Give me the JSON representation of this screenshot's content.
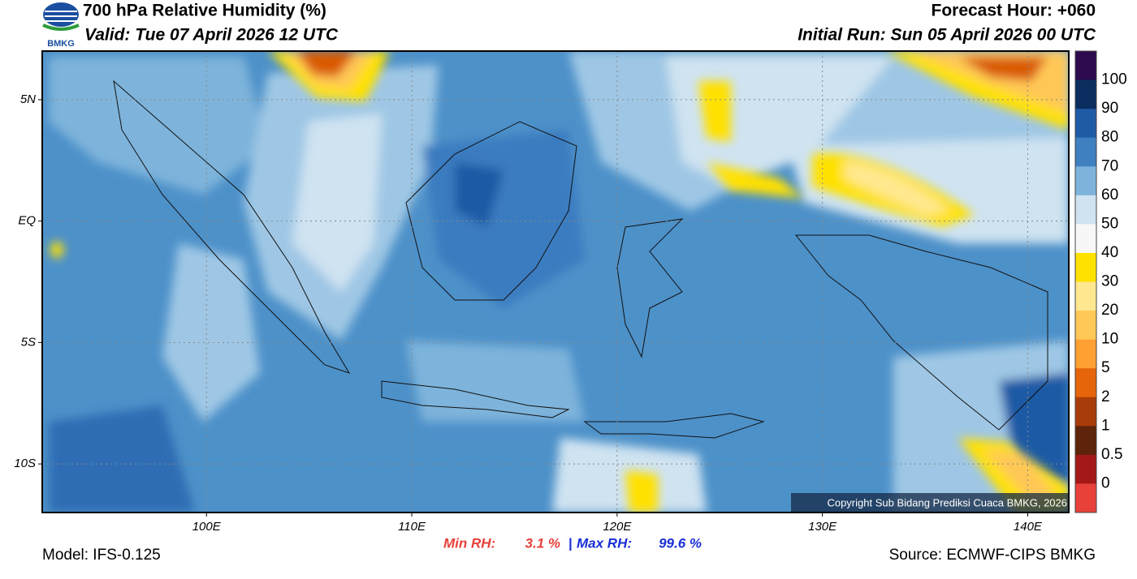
{
  "header": {
    "logo": "BMKG",
    "title": "700 hPa Relative Humidity (%)",
    "valid": "Valid: Tue 07 April 2026 12 UTC",
    "forecast_hour": "Forecast Hour: +060",
    "initial_run": "Initial Run: Sun 05 April 2026 00 UTC"
  },
  "map": {
    "lonlim": [
      92,
      142
    ],
    "latlim": [
      -12,
      7
    ],
    "lonticks": [
      {
        "value": 100,
        "label": "100E"
      },
      {
        "value": 110,
        "label": "110E"
      },
      {
        "value": 120,
        "label": "120E"
      },
      {
        "value": 130,
        "label": "130E"
      },
      {
        "value": 140,
        "label": "140E"
      }
    ],
    "latticks": [
      {
        "value": 5,
        "label": "5N"
      },
      {
        "value": 0,
        "label": "EQ"
      },
      {
        "value": -5,
        "label": "5S"
      },
      {
        "value": -10,
        "label": "10S"
      }
    ],
    "copyright": "Copyright Sub Bidang Prediksi Cuaca BMKG, 2026"
  },
  "colorbar": {
    "levels": [
      100,
      90,
      80,
      70,
      60,
      50,
      40,
      30,
      20,
      10,
      5,
      2,
      1,
      0.5,
      0
    ],
    "colors": [
      "#2e0a4f",
      "#0c2d5f",
      "#1f5aa5",
      "#3f80c0",
      "#7eb4db",
      "#cfe3f1",
      "#f7f7f7",
      "#ffe100",
      "#ffe88f",
      "#ffc857",
      "#ffa033",
      "#e6650a",
      "#a83c0a",
      "#5e230b",
      "#a51818",
      "#e8413a"
    ]
  },
  "footer": {
    "min_rh": {
      "label": "Min RH:",
      "value": "3.1 %"
    },
    "separator": "|",
    "max_rh": {
      "label": "Max RH:",
      "value": "99.6 %"
    },
    "model": "Model: IFS-0.125",
    "source": "Source: ECMWF-CIPS BMKG"
  }
}
